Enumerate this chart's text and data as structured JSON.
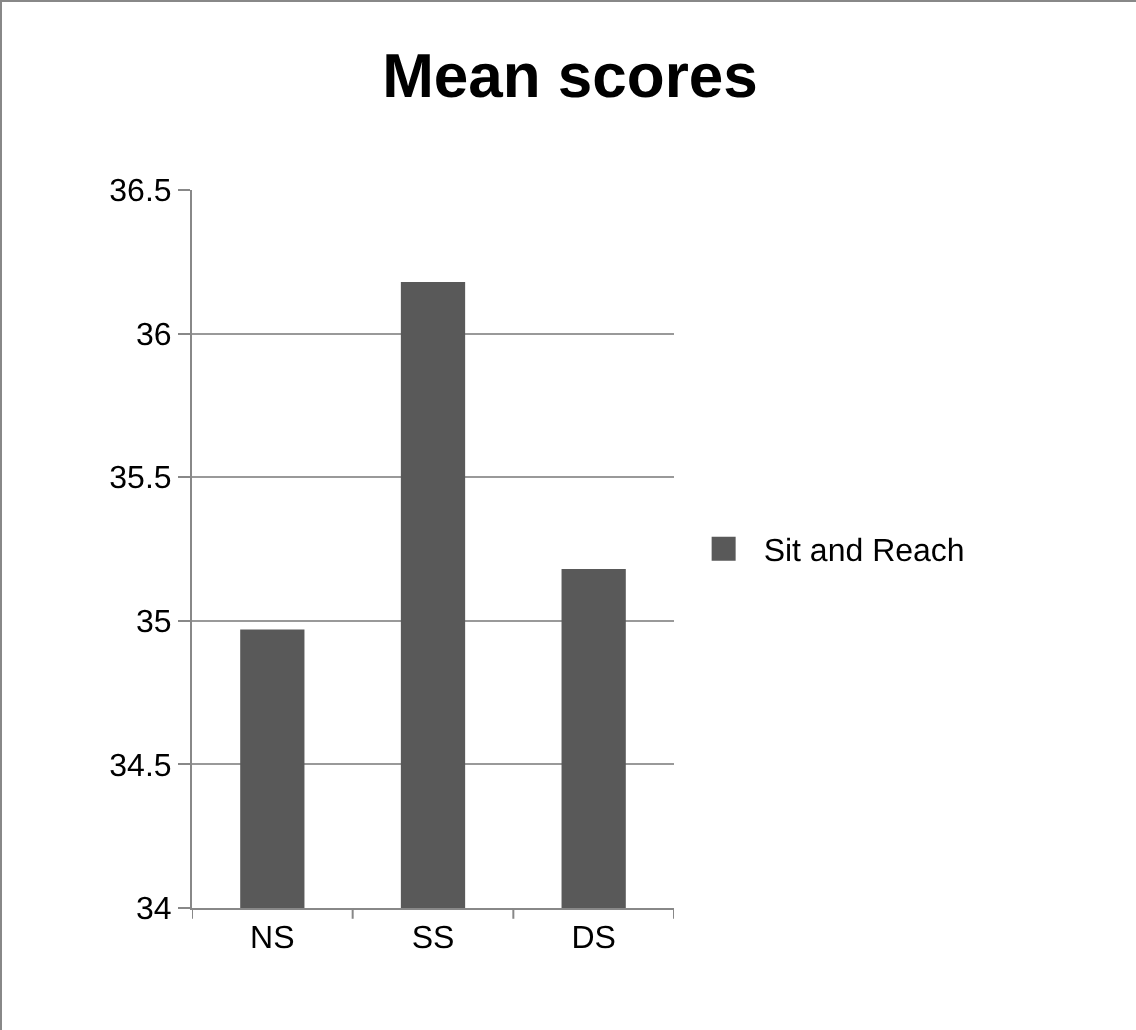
{
  "chart_data": {
    "type": "bar",
    "title": "Mean scores",
    "categories": [
      "NS",
      "SS",
      "DS"
    ],
    "series": [
      {
        "name": "Sit and Reach",
        "color": "#595959",
        "values": [
          34.97,
          36.18,
          35.18
        ]
      }
    ],
    "ylim": [
      34,
      36.5
    ],
    "yticks": [
      34,
      34.5,
      35,
      35.5,
      36,
      36.5
    ],
    "grid": "y",
    "legend": "right"
  }
}
